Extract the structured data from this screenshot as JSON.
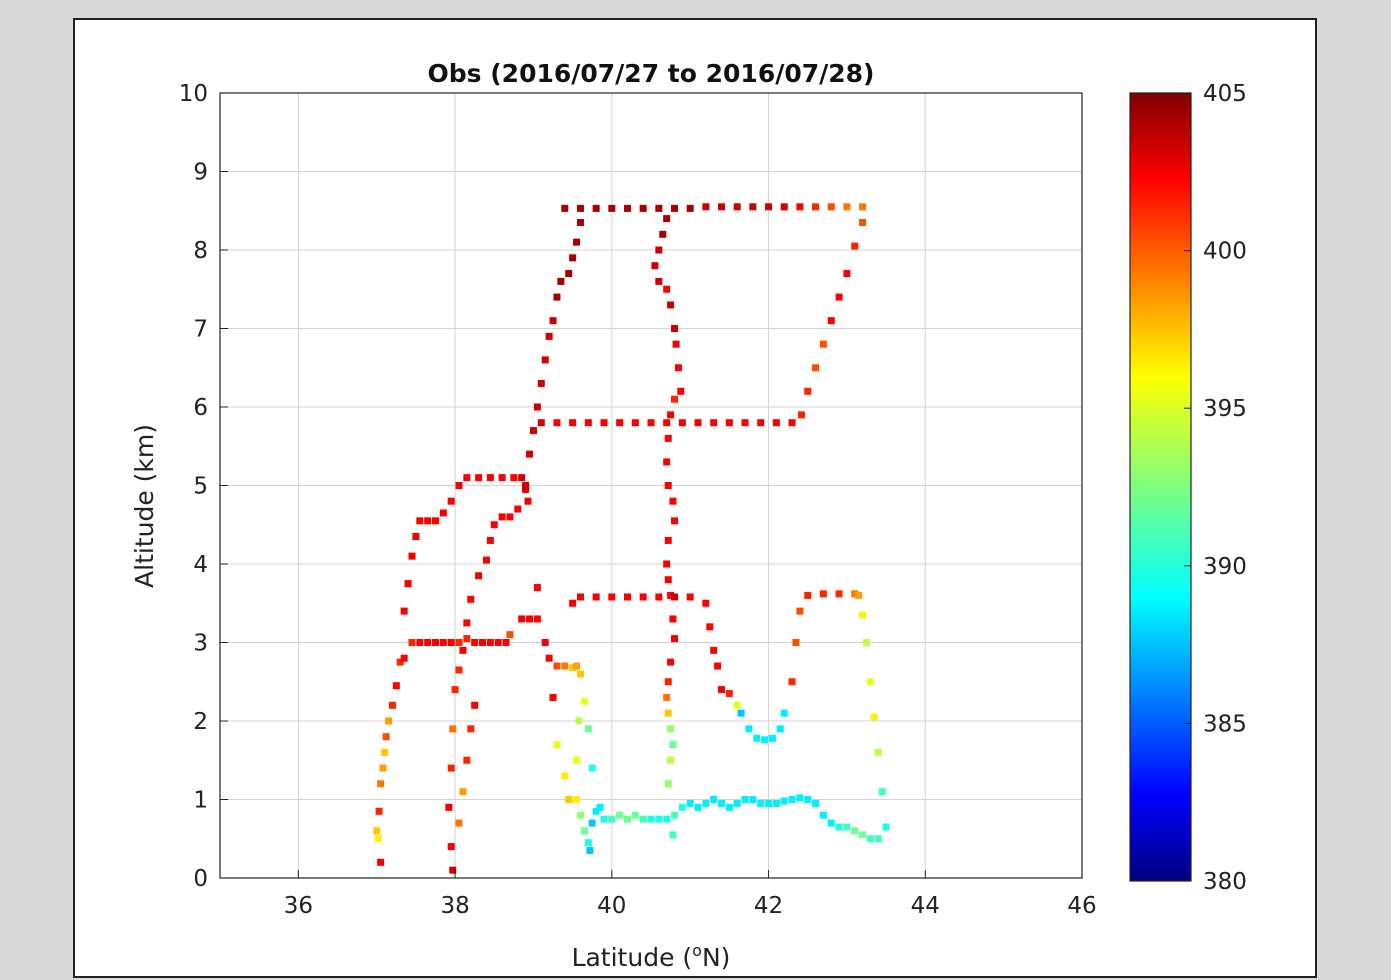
{
  "chart_data": {
    "type": "scatter",
    "title": "Obs (2016/07/27 to 2016/07/28)",
    "xlabel": "Latitude (",
    "xlabel_sup": "o",
    "xlabel_end": "N)",
    "ylabel": "Altitude (km)",
    "xlim": [
      35,
      46
    ],
    "ylim": [
      0,
      10
    ],
    "xticks": [
      36,
      38,
      40,
      42,
      44,
      46
    ],
    "yticks": [
      0,
      1,
      2,
      3,
      4,
      5,
      6,
      7,
      8,
      9,
      10
    ],
    "grid": true,
    "colormap": "jet",
    "colorbar": {
      "min": 380,
      "max": 405,
      "ticks": [
        380,
        385,
        390,
        395,
        400,
        405
      ]
    },
    "points_format": "[latitude, altitude_km, value]",
    "points": [
      [
        37.05,
        0.2,
        402
      ],
      [
        37.02,
        0.5,
        396
      ],
      [
        37.0,
        0.6,
        397
      ],
      [
        37.03,
        0.85,
        401
      ],
      [
        37.05,
        1.2,
        399
      ],
      [
        37.08,
        1.4,
        398
      ],
      [
        37.1,
        1.6,
        397
      ],
      [
        37.12,
        1.8,
        400
      ],
      [
        37.15,
        2.0,
        398
      ],
      [
        37.2,
        2.2,
        401
      ],
      [
        37.25,
        2.45,
        402
      ],
      [
        37.3,
        2.75,
        401
      ],
      [
        37.35,
        2.8,
        402
      ],
      [
        37.45,
        3.0,
        401
      ],
      [
        37.55,
        3.0,
        402
      ],
      [
        37.65,
        3.0,
        402
      ],
      [
        37.75,
        3.0,
        402
      ],
      [
        37.85,
        3.0,
        402
      ],
      [
        37.95,
        3.0,
        402
      ],
      [
        38.05,
        3.0,
        401
      ],
      [
        38.15,
        3.05,
        401
      ],
      [
        38.25,
        3.0,
        402
      ],
      [
        38.35,
        3.0,
        402
      ],
      [
        38.45,
        3.0,
        402
      ],
      [
        38.55,
        3.0,
        402
      ],
      [
        38.65,
        3.0,
        402
      ],
      [
        38.7,
        3.1,
        400
      ],
      [
        37.35,
        3.4,
        402
      ],
      [
        37.4,
        3.75,
        402
      ],
      [
        37.45,
        4.1,
        402
      ],
      [
        37.5,
        4.35,
        402
      ],
      [
        37.55,
        4.55,
        402
      ],
      [
        37.65,
        4.55,
        402
      ],
      [
        37.75,
        4.55,
        402
      ],
      [
        37.85,
        4.65,
        402
      ],
      [
        37.95,
        4.8,
        402
      ],
      [
        38.05,
        5.0,
        402
      ],
      [
        38.15,
        5.1,
        402
      ],
      [
        38.3,
        5.1,
        402
      ],
      [
        38.45,
        5.1,
        402
      ],
      [
        38.6,
        5.1,
        402
      ],
      [
        38.75,
        5.1,
        402
      ],
      [
        38.85,
        5.1,
        403
      ],
      [
        38.9,
        5.0,
        403
      ],
      [
        38.93,
        4.8,
        402
      ],
      [
        38.95,
        5.4,
        403
      ],
      [
        39.0,
        5.7,
        403
      ],
      [
        39.05,
        6.0,
        403
      ],
      [
        39.1,
        6.3,
        403
      ],
      [
        39.15,
        6.6,
        403
      ],
      [
        39.2,
        6.9,
        403
      ],
      [
        39.25,
        7.1,
        403
      ],
      [
        39.3,
        7.4,
        404
      ],
      [
        39.35,
        7.6,
        404
      ],
      [
        39.45,
        7.7,
        404
      ],
      [
        39.5,
        7.9,
        404
      ],
      [
        39.55,
        8.1,
        404
      ],
      [
        39.6,
        8.35,
        404
      ],
      [
        39.4,
        8.53,
        404
      ],
      [
        39.6,
        8.53,
        404
      ],
      [
        39.8,
        8.53,
        404
      ],
      [
        40.0,
        8.53,
        404
      ],
      [
        40.2,
        8.53,
        404
      ],
      [
        40.4,
        8.53,
        404
      ],
      [
        40.6,
        8.53,
        404
      ],
      [
        40.8,
        8.53,
        404
      ],
      [
        41.0,
        8.53,
        404
      ],
      [
        41.2,
        8.55,
        403
      ],
      [
        41.4,
        8.55,
        403
      ],
      [
        41.6,
        8.55,
        403
      ],
      [
        41.8,
        8.55,
        403
      ],
      [
        42.0,
        8.55,
        403
      ],
      [
        42.2,
        8.55,
        403
      ],
      [
        42.4,
        8.55,
        402
      ],
      [
        42.6,
        8.55,
        401
      ],
      [
        42.8,
        8.55,
        400
      ],
      [
        43.0,
        8.55,
        399
      ],
      [
        43.2,
        8.55,
        399
      ],
      [
        40.7,
        8.4,
        404
      ],
      [
        40.65,
        8.2,
        404
      ],
      [
        40.6,
        8.0,
        403
      ],
      [
        40.55,
        7.8,
        403
      ],
      [
        40.6,
        7.6,
        403
      ],
      [
        40.7,
        7.5,
        402
      ],
      [
        40.75,
        7.3,
        403
      ],
      [
        40.8,
        7.0,
        403
      ],
      [
        40.82,
        6.8,
        402
      ],
      [
        40.85,
        6.5,
        402
      ],
      [
        40.88,
        6.2,
        402
      ],
      [
        40.8,
        6.1,
        401
      ],
      [
        40.75,
        5.9,
        402
      ],
      [
        40.72,
        5.6,
        402
      ],
      [
        40.7,
        5.3,
        402
      ],
      [
        40.72,
        5.0,
        402
      ],
      [
        40.78,
        4.8,
        402
      ],
      [
        40.8,
        4.55,
        402
      ],
      [
        40.72,
        4.3,
        402
      ],
      [
        40.7,
        4.0,
        402
      ],
      [
        40.72,
        3.8,
        402
      ],
      [
        40.75,
        3.6,
        402
      ],
      [
        40.78,
        3.3,
        402
      ],
      [
        40.8,
        3.05,
        402
      ],
      [
        40.75,
        2.75,
        402
      ],
      [
        40.72,
        2.5,
        401
      ],
      [
        40.7,
        2.3,
        399
      ],
      [
        40.72,
        2.1,
        397
      ],
      [
        40.75,
        1.9,
        393
      ],
      [
        40.78,
        1.7,
        392
      ],
      [
        40.75,
        1.5,
        394
      ],
      [
        40.72,
        1.2,
        393
      ],
      [
        40.8,
        0.8,
        391
      ],
      [
        40.78,
        0.55,
        391
      ],
      [
        39.1,
        5.8,
        403
      ],
      [
        39.3,
        5.8,
        402
      ],
      [
        39.5,
        5.8,
        402
      ],
      [
        39.7,
        5.8,
        402
      ],
      [
        39.9,
        5.8,
        402
      ],
      [
        40.1,
        5.8,
        402
      ],
      [
        40.3,
        5.8,
        402
      ],
      [
        40.5,
        5.8,
        402
      ],
      [
        40.7,
        5.8,
        402
      ],
      [
        40.9,
        5.8,
        402
      ],
      [
        41.1,
        5.8,
        402
      ],
      [
        41.3,
        5.8,
        402
      ],
      [
        41.5,
        5.8,
        402
      ],
      [
        41.7,
        5.8,
        402
      ],
      [
        41.9,
        5.8,
        402
      ],
      [
        42.1,
        5.8,
        402
      ],
      [
        42.3,
        5.8,
        402
      ],
      [
        42.42,
        5.9,
        401
      ],
      [
        42.5,
        6.2,
        401
      ],
      [
        42.6,
        6.5,
        400
      ],
      [
        42.7,
        6.8,
        400
      ],
      [
        42.8,
        7.1,
        402
      ],
      [
        42.9,
        7.4,
        402
      ],
      [
        43.0,
        7.7,
        402
      ],
      [
        43.1,
        8.05,
        401
      ],
      [
        43.2,
        8.35,
        400
      ],
      [
        39.5,
        3.5,
        402
      ],
      [
        39.6,
        3.58,
        402
      ],
      [
        39.8,
        3.58,
        402
      ],
      [
        40.0,
        3.58,
        402
      ],
      [
        40.2,
        3.58,
        402
      ],
      [
        40.4,
        3.58,
        402
      ],
      [
        40.6,
        3.58,
        402
      ],
      [
        40.8,
        3.58,
        403
      ],
      [
        41.0,
        3.58,
        402
      ],
      [
        41.2,
        3.5,
        402
      ],
      [
        41.25,
        3.2,
        402
      ],
      [
        41.3,
        2.9,
        402
      ],
      [
        41.35,
        2.7,
        402
      ],
      [
        41.4,
        2.4,
        402
      ],
      [
        41.5,
        2.35,
        401
      ],
      [
        41.6,
        2.2,
        395
      ],
      [
        41.65,
        2.1,
        388
      ],
      [
        41.75,
        1.9,
        389
      ],
      [
        41.85,
        1.78,
        389
      ],
      [
        41.95,
        1.76,
        389
      ],
      [
        42.05,
        1.78,
        389
      ],
      [
        42.15,
        1.9,
        389
      ],
      [
        42.2,
        2.1,
        389
      ],
      [
        42.3,
        2.5,
        401
      ],
      [
        42.35,
        3.0,
        400
      ],
      [
        42.4,
        3.4,
        400
      ],
      [
        42.5,
        3.6,
        401
      ],
      [
        42.7,
        3.62,
        401
      ],
      [
        42.9,
        3.62,
        401
      ],
      [
        43.1,
        3.62,
        399
      ],
      [
        43.15,
        3.6,
        398
      ],
      [
        43.2,
        3.35,
        396
      ],
      [
        43.25,
        3.0,
        394
      ],
      [
        43.3,
        2.5,
        395
      ],
      [
        43.35,
        2.05,
        396
      ],
      [
        43.4,
        1.6,
        394
      ],
      [
        43.45,
        1.1,
        391
      ],
      [
        43.5,
        0.65,
        390
      ],
      [
        43.4,
        0.5,
        391
      ],
      [
        38.2,
        3.55,
        402
      ],
      [
        38.15,
        3.25,
        402
      ],
      [
        38.1,
        2.9,
        402
      ],
      [
        38.05,
        2.65,
        401
      ],
      [
        38.0,
        2.4,
        401
      ],
      [
        37.97,
        1.9,
        399
      ],
      [
        37.95,
        1.4,
        401
      ],
      [
        37.92,
        0.9,
        402
      ],
      [
        37.95,
        0.4,
        402
      ],
      [
        37.97,
        0.1,
        403
      ],
      [
        38.05,
        0.7,
        399
      ],
      [
        38.1,
        1.1,
        398
      ],
      [
        38.15,
        1.5,
        401
      ],
      [
        38.2,
        1.9,
        401
      ],
      [
        38.25,
        2.2,
        402
      ],
      [
        38.3,
        3.85,
        402
      ],
      [
        38.4,
        4.05,
        402
      ],
      [
        38.45,
        4.3,
        402
      ],
      [
        38.5,
        4.5,
        402
      ],
      [
        38.6,
        4.6,
        402
      ],
      [
        38.7,
        4.6,
        402
      ],
      [
        38.8,
        4.7,
        402
      ],
      [
        38.9,
        4.95,
        403
      ],
      [
        38.85,
        3.3,
        402
      ],
      [
        38.95,
        3.3,
        402
      ],
      [
        39.05,
        3.3,
        402
      ],
      [
        39.05,
        3.7,
        402
      ],
      [
        39.15,
        3.0,
        402
      ],
      [
        39.2,
        2.8,
        402
      ],
      [
        39.3,
        2.7,
        400
      ],
      [
        39.4,
        2.7,
        399
      ],
      [
        39.5,
        2.68,
        397
      ],
      [
        39.55,
        2.7,
        398
      ],
      [
        39.6,
        2.6,
        397
      ],
      [
        39.25,
        2.3,
        402
      ],
      [
        39.3,
        1.7,
        395
      ],
      [
        39.4,
        1.3,
        396
      ],
      [
        39.45,
        1.0,
        397
      ],
      [
        39.55,
        1.0,
        396
      ],
      [
        39.6,
        0.8,
        393
      ],
      [
        39.65,
        0.6,
        392
      ],
      [
        39.7,
        0.45,
        390
      ],
      [
        39.72,
        0.35,
        388
      ],
      [
        39.75,
        0.7,
        388
      ],
      [
        39.8,
        0.85,
        389
      ],
      [
        39.85,
        0.9,
        389
      ],
      [
        39.9,
        0.75,
        390
      ],
      [
        40.0,
        0.75,
        391
      ],
      [
        40.1,
        0.8,
        392
      ],
      [
        40.2,
        0.75,
        392
      ],
      [
        40.3,
        0.8,
        392
      ],
      [
        40.4,
        0.75,
        391
      ],
      [
        40.5,
        0.75,
        390
      ],
      [
        40.6,
        0.75,
        390
      ],
      [
        40.7,
        0.75,
        390
      ],
      [
        40.9,
        0.9,
        390
      ],
      [
        41.0,
        0.95,
        389
      ],
      [
        41.1,
        0.9,
        389
      ],
      [
        41.2,
        0.95,
        389
      ],
      [
        41.3,
        1.0,
        389
      ],
      [
        41.4,
        0.95,
        389
      ],
      [
        41.5,
        0.9,
        389
      ],
      [
        41.6,
        0.95,
        389
      ],
      [
        41.7,
        1.0,
        389
      ],
      [
        41.8,
        1.0,
        389
      ],
      [
        41.9,
        0.95,
        389
      ],
      [
        42.0,
        0.95,
        389
      ],
      [
        42.1,
        0.95,
        389
      ],
      [
        42.2,
        0.98,
        389
      ],
      [
        42.3,
        1.0,
        389
      ],
      [
        42.4,
        1.02,
        389
      ],
      [
        42.5,
        1.0,
        389
      ],
      [
        42.6,
        0.95,
        389
      ],
      [
        42.7,
        0.8,
        389
      ],
      [
        42.8,
        0.7,
        389
      ],
      [
        42.9,
        0.65,
        390
      ],
      [
        43.0,
        0.65,
        391
      ],
      [
        43.1,
        0.6,
        392
      ],
      [
        43.2,
        0.55,
        392
      ],
      [
        43.3,
        0.5,
        391
      ],
      [
        39.75,
        1.4,
        390
      ],
      [
        39.7,
        1.9,
        392
      ],
      [
        39.65,
        2.25,
        395
      ],
      [
        39.58,
        2.0,
        394
      ],
      [
        39.55,
        1.5,
        395
      ]
    ]
  }
}
